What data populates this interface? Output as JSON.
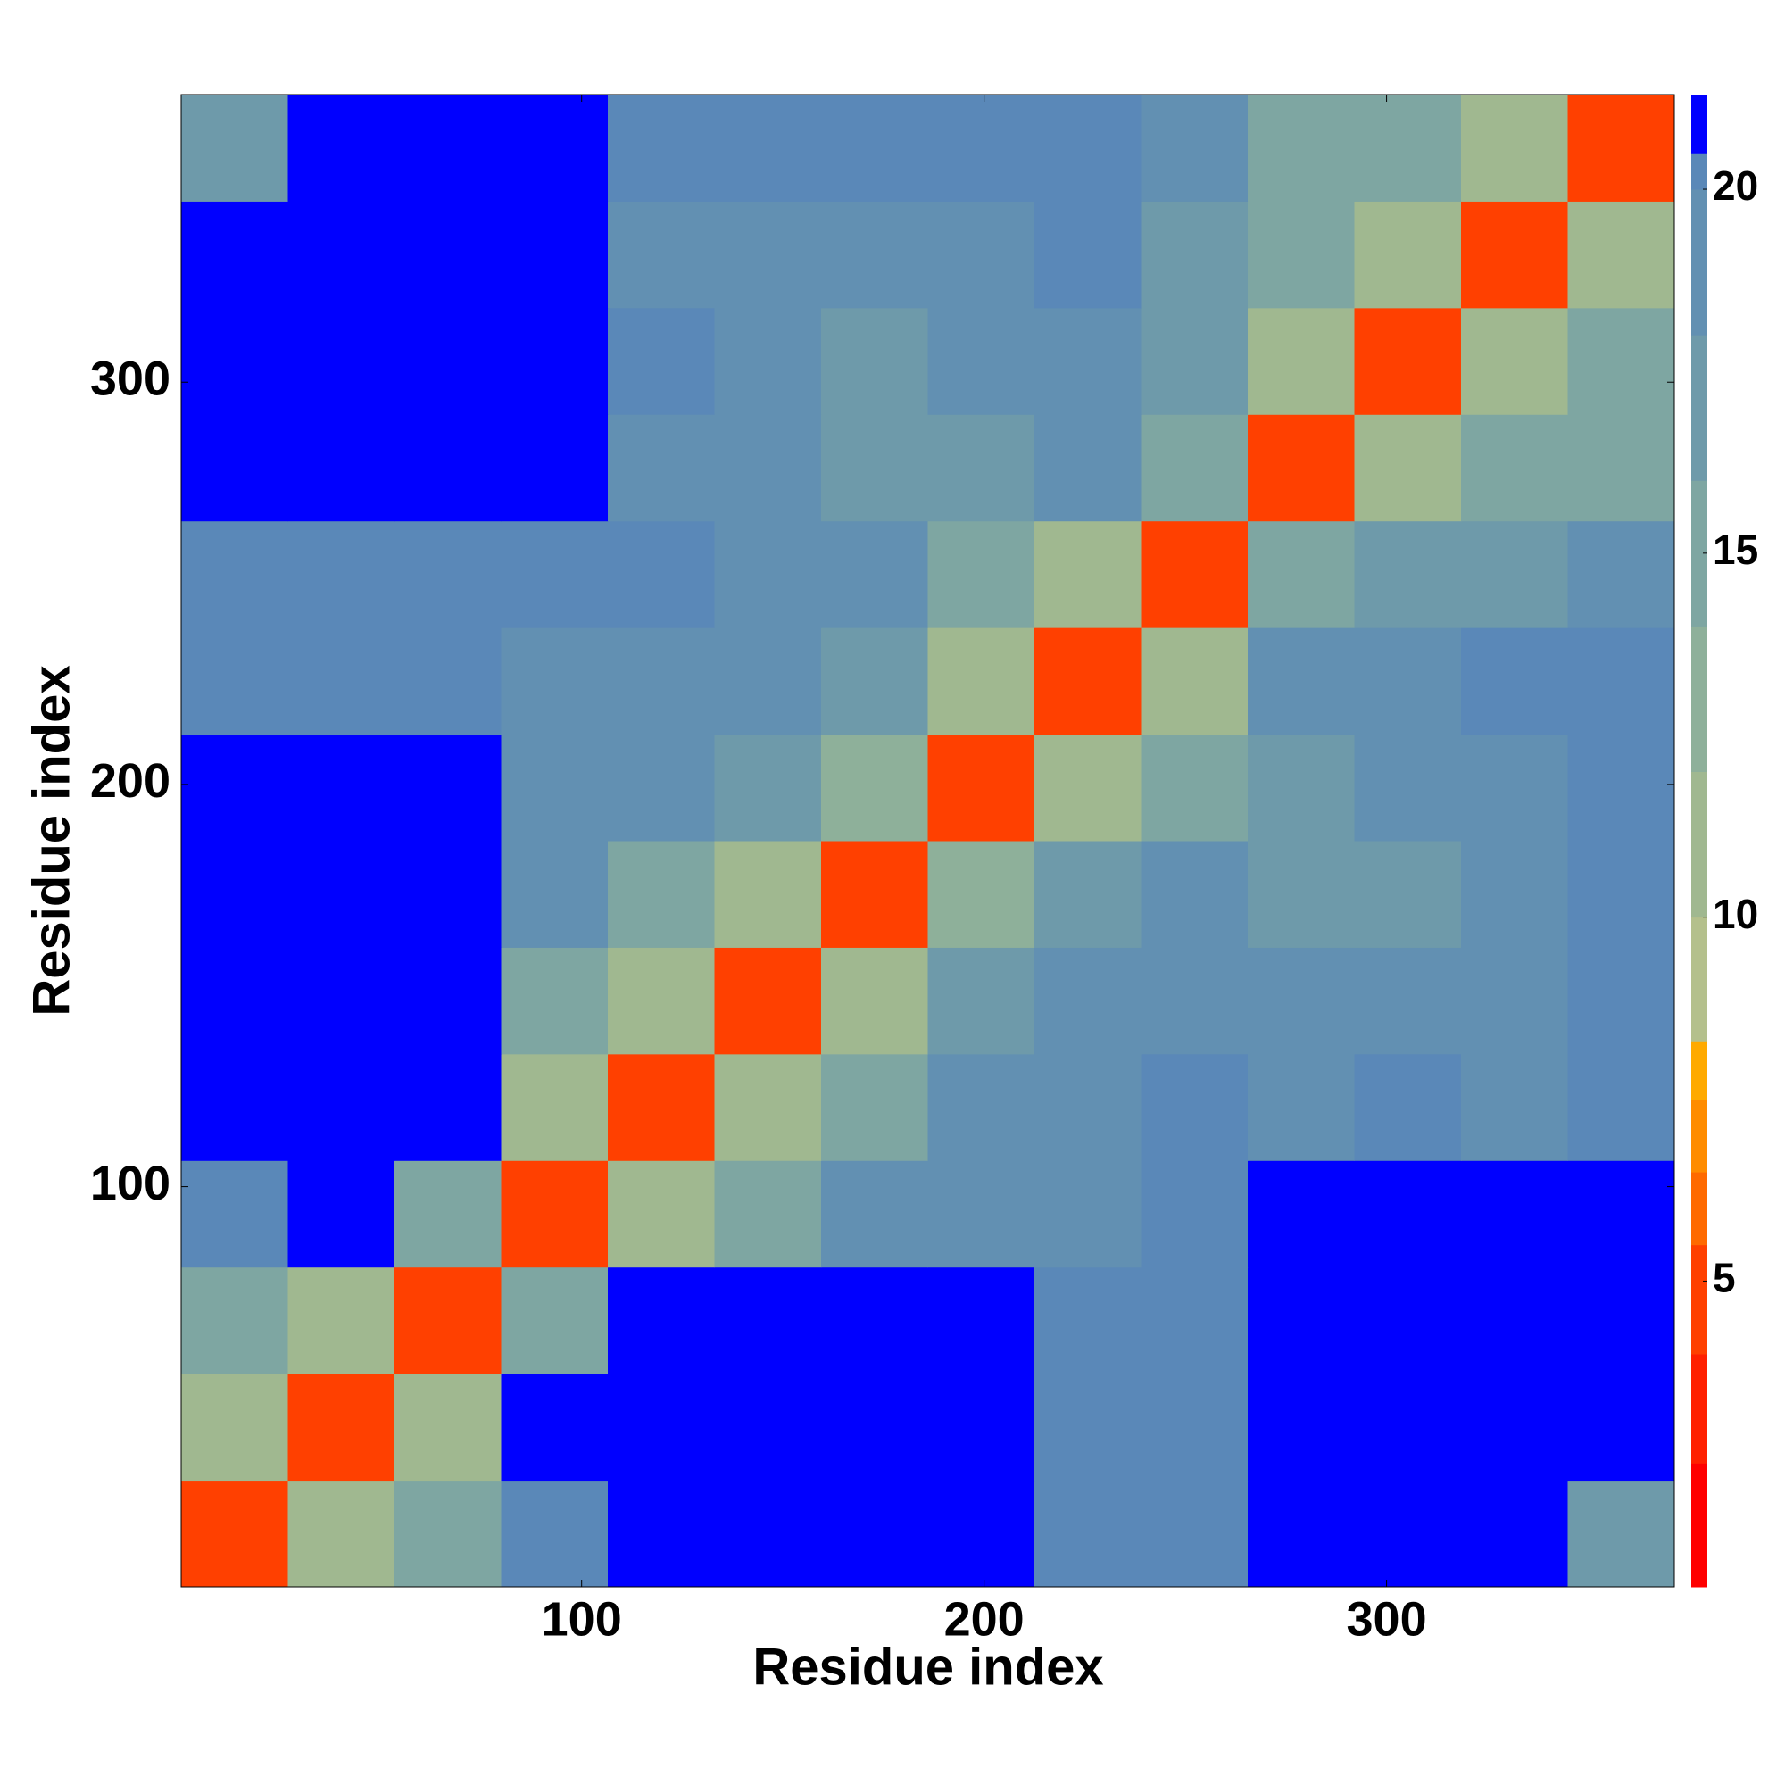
{
  "chart_data": {
    "type": "heatmap",
    "xlabel": "Residue index",
    "ylabel": "Residue index",
    "x_edges": [
      0.5,
      27,
      53.5,
      80,
      106.5,
      133,
      159.5,
      186,
      212.5,
      239,
      265.5,
      292,
      318.5,
      345,
      371.5
    ],
    "y_edges": [
      0.5,
      27,
      53.5,
      80,
      106.5,
      133,
      159.5,
      186,
      212.5,
      239,
      265.5,
      292,
      318.5,
      345,
      371.5
    ],
    "z": [
      [
        4,
        11,
        14,
        20,
        21,
        21,
        21,
        21,
        20,
        20,
        21,
        21,
        21,
        17
      ],
      [
        11,
        4,
        11,
        21,
        21,
        21,
        21,
        21,
        20,
        20,
        21,
        21,
        21,
        21
      ],
      [
        14,
        11,
        4,
        15,
        21,
        21,
        21,
        21,
        20,
        20,
        21,
        21,
        21,
        21
      ],
      [
        20,
        21,
        15,
        4,
        11,
        15,
        18,
        18,
        19,
        20,
        21,
        21,
        21,
        21
      ],
      [
        21,
        21,
        21,
        11,
        4,
        11,
        15,
        18,
        19,
        20,
        19,
        20,
        19,
        20
      ],
      [
        21,
        21,
        21,
        15,
        11,
        4,
        11,
        17,
        18,
        19,
        18,
        19,
        19,
        20
      ],
      [
        21,
        21,
        21,
        18,
        15,
        11,
        4,
        13,
        17,
        18,
        17,
        17,
        18,
        20
      ],
      [
        21,
        21,
        21,
        18,
        18,
        17,
        13,
        4,
        11,
        14,
        17,
        18,
        18,
        20
      ],
      [
        20,
        20,
        20,
        19,
        19,
        18,
        17,
        11,
        4,
        11,
        18,
        19,
        20,
        20
      ],
      [
        20,
        20,
        20,
        20,
        20,
        19,
        18,
        14,
        11,
        4,
        15,
        17,
        17,
        18
      ],
      [
        21,
        21,
        21,
        21,
        19,
        18,
        17,
        17,
        18,
        15,
        4,
        11,
        14,
        15
      ],
      [
        21,
        21,
        21,
        21,
        20,
        19,
        17,
        18,
        19,
        17,
        11,
        4,
        11,
        14
      ],
      [
        21,
        21,
        21,
        21,
        19,
        19,
        18,
        18,
        20,
        17,
        14,
        11,
        4,
        11
      ],
      [
        17,
        21,
        21,
        21,
        20,
        20,
        20,
        20,
        20,
        18,
        15,
        14,
        11,
        4
      ]
    ],
    "xlim": [
      0.5,
      371.5
    ],
    "ylim": [
      0.5,
      371.5
    ],
    "xticks": [
      100,
      200,
      300
    ],
    "yticks": [
      100,
      200,
      300
    ],
    "zlim": [
      0.8,
      21.3
    ],
    "zticks": [
      5,
      10,
      15,
      20
    ],
    "colorscale": [
      [
        0.8,
        "#ff0000"
      ],
      [
        2.5,
        "#ff2000"
      ],
      [
        4,
        "#ff4000"
      ],
      [
        5.5,
        "#ff6a00"
      ],
      [
        6.5,
        "#ff8c00"
      ],
      [
        7.5,
        "#ffaa00"
      ],
      [
        8.3,
        "#b4c08c"
      ],
      [
        10,
        "#a0b890"
      ],
      [
        12,
        "#8eb09a"
      ],
      [
        14,
        "#7ea6a2"
      ],
      [
        16,
        "#6e9aaa"
      ],
      [
        18,
        "#6290b2"
      ],
      [
        20,
        "#5a88b8"
      ],
      [
        20.5,
        "#0000ff"
      ]
    ]
  }
}
